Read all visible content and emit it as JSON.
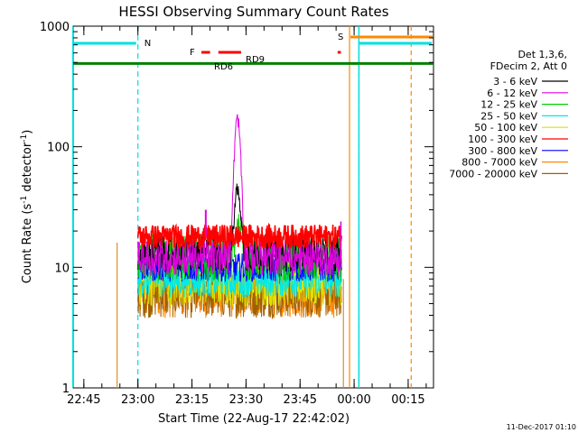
{
  "chart_data": {
    "type": "line",
    "title": "HESSI Observing Summary Count Rates",
    "xlabel": "Start Time (22-Aug-17 22:42:02)",
    "ylabel": "Count Rate (s",
    "ylabel_sup1": "-1",
    "ylabel_mid": " detector",
    "ylabel_sup2": "-1",
    "ylabel_end": ")",
    "footer": "11-Dec-2017 01:10",
    "x_axis_start": "22:42:02",
    "x_range_min": [
      0,
      100
    ],
    "y_scale": "log",
    "ylim": [
      1,
      1000
    ],
    "y_ticks": [
      {
        "v": 1,
        "label": "1"
      },
      {
        "v": 10,
        "label": "10"
      },
      {
        "v": 100,
        "label": "100"
      },
      {
        "v": 1000,
        "label": "1000"
      }
    ],
    "x_ticks": [
      {
        "m": 2.97,
        "label": "22:45"
      },
      {
        "m": 17.97,
        "label": "23:00"
      },
      {
        "m": 32.97,
        "label": "23:15"
      },
      {
        "m": 47.97,
        "label": "23:30"
      },
      {
        "m": 62.97,
        "label": "23:45"
      },
      {
        "m": 77.97,
        "label": "00:00"
      },
      {
        "m": 92.97,
        "label": "00:15"
      }
    ],
    "legend_header": [
      "Det 1,3,6,",
      "FDecim 2, Att 0"
    ],
    "legend_position": "right, outside plot",
    "series": [
      {
        "name": "3 - 6 keV",
        "color": "#000000",
        "base": 13,
        "jitter": 0.15,
        "peak": 45,
        "peak_at": 45.6,
        "peak_w": 1.0
      },
      {
        "name": "6 - 12 keV",
        "color": "#e000e0",
        "base": 12,
        "jitter": 0.15,
        "peak": 170,
        "peak_at": 45.6,
        "peak_w": 1.0
      },
      {
        "name": "12 - 25 keV",
        "color": "#00d000",
        "base": 12,
        "jitter": 0.2,
        "peak": 22,
        "peak_at": 46,
        "peak_w": 1.2
      },
      {
        "name": "25 - 50 keV",
        "color": "#00e8e8",
        "base": 8,
        "jitter": 0.15
      },
      {
        "name": "50 - 100 keV",
        "color": "#e0e000",
        "base": 7.5,
        "jitter": 0.2
      },
      {
        "name": "100 - 300 keV",
        "color": "#ff0000",
        "base": 18,
        "jitter": 0.1
      },
      {
        "name": "300 - 800 keV",
        "color": "#0000ff",
        "base": 10,
        "jitter": 0.12
      },
      {
        "name": "800 - 7000 keV",
        "color": "#ff8800",
        "base": 6,
        "jitter": 0.2
      },
      {
        "name": "7000 - 20000 keV",
        "color": "#a06000",
        "base": 6,
        "jitter": 0.2
      }
    ],
    "data_window": [
      17.97,
      74.5
    ],
    "states": {
      "night_label": "N",
      "saa_label": "S",
      "flare_label": "F",
      "rd_labels": [
        "RD6",
        "RD9"
      ],
      "night_intervals": [
        [
          0,
          17.97
        ],
        [
          79.3,
          100
        ]
      ],
      "saa_interval": [
        76.7,
        100
      ],
      "flare_segments": [
        [
          35.6,
          38.0
        ],
        [
          40.3,
          46.6
        ],
        [
          73.4,
          74.3
        ]
      ],
      "rd_value": 490
    }
  },
  "colors": {
    "night": "#00e0e0",
    "saa": "#ff8800",
    "flare": "#ff0000",
    "rd": "#008000",
    "marker_orange": "#d89030"
  }
}
